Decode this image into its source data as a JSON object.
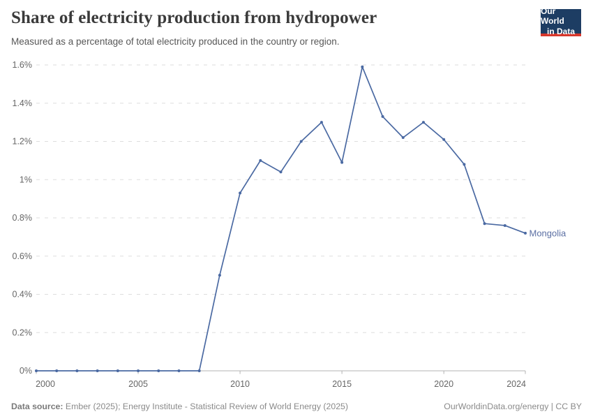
{
  "header": {
    "title": "Share of electricity production from hydropower",
    "subtitle": "Measured as a percentage of total electricity produced in the country or region.",
    "logo": {
      "line1": "Our World",
      "line2": "in Data",
      "bg_color": "#1d3d63",
      "accent_color": "#d6372c",
      "text_color": "#ffffff"
    }
  },
  "chart_data": {
    "type": "line",
    "title": "Share of electricity production from hydropower",
    "subtitle": "Measured as a percentage of total electricity produced in the country or region.",
    "xlabel": "",
    "ylabel": "",
    "xlim": [
      2000,
      2024
    ],
    "ylim": [
      0,
      1.6
    ],
    "grid": "horizontal-dashed",
    "grid_color": "#dedede",
    "axis_line_color": "#b3b3b3",
    "axis_text_color": "#666666",
    "legend_position": "end-of-line-label",
    "x_ticks": [
      2000,
      2005,
      2010,
      2015,
      2020,
      2024
    ],
    "y_ticks": [
      {
        "value": 0,
        "label": "0%"
      },
      {
        "value": 0.2,
        "label": "0.2%"
      },
      {
        "value": 0.4,
        "label": "0.4%"
      },
      {
        "value": 0.6,
        "label": "0.6%"
      },
      {
        "value": 0.8,
        "label": "0.8%"
      },
      {
        "value": 1,
        "label": "1%"
      },
      {
        "value": 1.2,
        "label": "1.2%"
      },
      {
        "value": 1.4,
        "label": "1.4%"
      },
      {
        "value": 1.6,
        "label": "1.6%"
      }
    ],
    "series": [
      {
        "name": "Mongolia",
        "color": "#4a69a2",
        "label_color": "#5b6fa3",
        "x": [
          2000,
          2001,
          2002,
          2003,
          2004,
          2005,
          2006,
          2007,
          2008,
          2009,
          2010,
          2011,
          2012,
          2013,
          2014,
          2015,
          2016,
          2017,
          2018,
          2019,
          2020,
          2021,
          2022,
          2023,
          2024
        ],
        "values": [
          0,
          0,
          0,
          0,
          0,
          0,
          0,
          0,
          0,
          0.5,
          0.93,
          1.1,
          1.04,
          1.2,
          1.3,
          1.09,
          1.59,
          1.33,
          1.22,
          1.3,
          1.21,
          1.08,
          0.77,
          0.76,
          0.72
        ]
      }
    ]
  },
  "footer": {
    "source_label": "Data source:",
    "source_text": " Ember (2025); Energy Institute - Statistical Review of World Energy (2025)",
    "right_text": "OurWorldinData.org/energy | CC BY"
  }
}
